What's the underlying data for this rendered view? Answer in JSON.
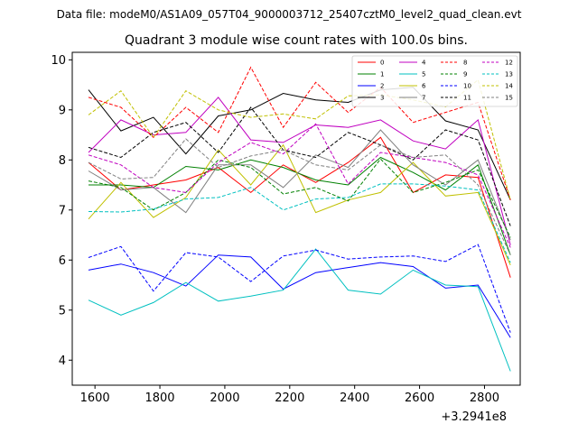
{
  "chart_data": {
    "type": "line",
    "suptitle": "Data file: modeM0/AS1A09_057T04_9000003712_25407cztM0_level2_quad_clean.evt",
    "title": "Quadrant 3 module wise count rates with 100.0s bins.",
    "xlabel": "",
    "ylabel": "",
    "x_offset_text": "+3.2941e8",
    "xlim": [
      1530,
      2910
    ],
    "ylim": [
      3.5,
      10.15
    ],
    "x_ticks": [
      1600,
      1800,
      2000,
      2200,
      2400,
      2600,
      2800
    ],
    "y_ticks": [
      4,
      5,
      6,
      7,
      8,
      9,
      10
    ],
    "legend_position": "top-right",
    "x": [
      1580,
      1680,
      1780,
      1880,
      1980,
      2080,
      2180,
      2280,
      2380,
      2480,
      2580,
      2680,
      2780,
      2880
    ],
    "series": [
      {
        "name": "0",
        "color": "#ff0000",
        "style": "solid",
        "values": [
          7.95,
          7.4,
          7.5,
          7.6,
          7.85,
          7.35,
          7.9,
          7.55,
          7.95,
          8.45,
          7.35,
          7.7,
          7.65,
          5.65
        ]
      },
      {
        "name": "1",
        "color": "#008000",
        "style": "solid",
        "values": [
          7.5,
          7.5,
          7.45,
          7.87,
          7.8,
          8.0,
          7.85,
          7.6,
          7.5,
          8.05,
          7.75,
          7.4,
          7.9,
          6.1
        ]
      },
      {
        "name": "2",
        "color": "#0000ff",
        "style": "solid",
        "values": [
          5.8,
          5.92,
          5.75,
          5.48,
          6.1,
          6.06,
          5.42,
          5.75,
          5.85,
          5.95,
          5.87,
          5.44,
          5.5,
          4.45
        ]
      },
      {
        "name": "3",
        "color": "#000000",
        "style": "solid",
        "values": [
          9.4,
          8.58,
          8.85,
          8.12,
          8.88,
          9.0,
          9.33,
          9.2,
          9.15,
          9.4,
          9.45,
          8.78,
          8.6,
          7.2
        ]
      },
      {
        "name": "4",
        "color": "#c000c0",
        "style": "solid",
        "values": [
          8.15,
          8.8,
          8.5,
          8.55,
          9.25,
          8.4,
          8.35,
          8.7,
          8.65,
          8.8,
          8.38,
          8.22,
          8.8,
          6.3
        ]
      },
      {
        "name": "5",
        "color": "#00c0c0",
        "style": "solid",
        "values": [
          5.2,
          4.9,
          5.15,
          5.55,
          5.18,
          5.28,
          5.4,
          6.22,
          5.4,
          5.32,
          5.8,
          5.5,
          5.47,
          3.78
        ]
      },
      {
        "name": "6",
        "color": "#c0c000",
        "style": "solid",
        "values": [
          6.82,
          7.55,
          6.85,
          7.25,
          8.2,
          7.5,
          8.3,
          6.95,
          7.2,
          7.35,
          7.95,
          7.28,
          7.35,
          5.9
        ]
      },
      {
        "name": "7",
        "color": "#808080",
        "style": "solid",
        "values": [
          7.78,
          7.4,
          7.45,
          6.95,
          7.9,
          7.9,
          7.45,
          8.1,
          7.85,
          8.6,
          7.9,
          7.5,
          8.0,
          6.4
        ]
      },
      {
        "name": "8",
        "color": "#ff0000",
        "style": "dashed",
        "values": [
          9.25,
          9.05,
          8.45,
          9.05,
          8.55,
          9.85,
          8.65,
          9.55,
          8.95,
          9.45,
          8.75,
          8.95,
          9.15,
          7.2
        ]
      },
      {
        "name": "9",
        "color": "#008000",
        "style": "dashed",
        "values": [
          7.58,
          7.45,
          7.0,
          7.35,
          8.0,
          7.85,
          7.32,
          7.45,
          7.18,
          8.02,
          7.35,
          7.55,
          7.8,
          6.45
        ]
      },
      {
        "name": "10",
        "color": "#0000ff",
        "style": "dashed",
        "values": [
          6.05,
          6.27,
          5.38,
          6.15,
          6.06,
          5.57,
          6.08,
          6.2,
          6.02,
          6.06,
          6.08,
          5.97,
          6.31,
          4.55
        ]
      },
      {
        "name": "11",
        "color": "#000000",
        "style": "dashed",
        "values": [
          8.25,
          8.05,
          8.55,
          8.75,
          8.15,
          9.05,
          8.2,
          8.05,
          8.55,
          8.3,
          8.0,
          8.6,
          8.4,
          6.68
        ]
      },
      {
        "name": "12",
        "color": "#c000c0",
        "style": "dashed",
        "values": [
          8.1,
          7.9,
          7.45,
          7.35,
          7.95,
          8.35,
          8.12,
          8.72,
          7.52,
          8.15,
          8.05,
          7.95,
          7.7,
          6.25
        ]
      },
      {
        "name": "13",
        "color": "#00c0c0",
        "style": "dashed",
        "values": [
          6.97,
          6.96,
          7.02,
          7.22,
          7.25,
          7.45,
          7.0,
          7.22,
          7.25,
          7.52,
          7.52,
          7.48,
          7.4,
          5.95
        ]
      },
      {
        "name": "14",
        "color": "#c0c000",
        "style": "dashed",
        "values": [
          8.9,
          9.38,
          8.45,
          9.38,
          9.0,
          8.85,
          8.92,
          8.82,
          9.28,
          9.3,
          9.2,
          9.06,
          9.6,
          7.2
        ]
      },
      {
        "name": "15",
        "color": "#808080",
        "style": "dashed",
        "values": [
          7.95,
          7.62,
          7.65,
          8.42,
          7.85,
          8.08,
          8.2,
          7.9,
          7.8,
          8.3,
          8.05,
          8.1,
          7.5,
          6.1
        ]
      }
    ]
  }
}
